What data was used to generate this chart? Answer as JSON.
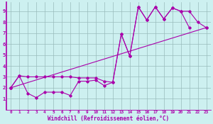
{
  "xlabel": "Windchill (Refroidissement éolien,°C)",
  "bg_color": "#cdf0f0",
  "line_color": "#aa00aa",
  "grid_color": "#99bbbb",
  "xlim": [
    -0.5,
    23.5
  ],
  "ylim": [
    0,
    9.8
  ],
  "xticks": [
    0,
    1,
    2,
    3,
    4,
    5,
    6,
    7,
    8,
    9,
    10,
    11,
    12,
    13,
    14,
    15,
    16,
    17,
    18,
    19,
    20,
    21,
    22,
    23
  ],
  "yticks": [
    1,
    2,
    3,
    4,
    5,
    6,
    7,
    8,
    9
  ],
  "line1_x": [
    0,
    1,
    2,
    3,
    4,
    5,
    6,
    7,
    8,
    9,
    10,
    11,
    12,
    13,
    14,
    15,
    16,
    17,
    18,
    19,
    20,
    21
  ],
  "line1_y": [
    2.0,
    3.1,
    1.5,
    1.1,
    1.6,
    1.6,
    1.6,
    1.3,
    2.6,
    2.6,
    2.7,
    2.2,
    2.5,
    6.9,
    4.9,
    9.4,
    8.2,
    9.4,
    8.3,
    9.3,
    9.0,
    7.5
  ],
  "line2_x": [
    0,
    1,
    2,
    3,
    4,
    5,
    6,
    7,
    8,
    9,
    10,
    11,
    12,
    13,
    14,
    15,
    16,
    17,
    18,
    19,
    20,
    21,
    22,
    23
  ],
  "line2_y": [
    2.0,
    3.1,
    3.0,
    3.0,
    3.0,
    3.0,
    3.0,
    3.0,
    2.9,
    2.9,
    2.9,
    2.6,
    2.5,
    6.9,
    4.9,
    9.4,
    8.2,
    9.4,
    8.3,
    9.3,
    9.0,
    9.0,
    8.0,
    7.5
  ],
  "line3_x": [
    0,
    23
  ],
  "line3_y": [
    2.0,
    7.5
  ]
}
